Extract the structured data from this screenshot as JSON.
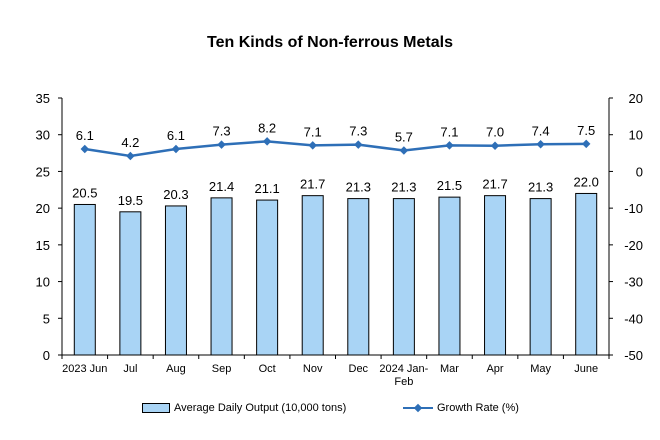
{
  "chart_data": {
    "type": "bar+line",
    "title": "Ten Kinds of Non-ferrous Metals",
    "categories": [
      "2023 Jun",
      "Jul",
      "Aug",
      "Sep",
      "Oct",
      "Nov",
      "Dec",
      "2024 Jan-Feb",
      "Mar",
      "Apr",
      "May",
      "June"
    ],
    "category_lines": [
      [
        "2023 Jun"
      ],
      [
        "Jul"
      ],
      [
        "Aug"
      ],
      [
        "Sep"
      ],
      [
        "Oct"
      ],
      [
        "Nov"
      ],
      [
        "Dec"
      ],
      [
        "2024 Jan-",
        "Feb"
      ],
      [
        "Mar"
      ],
      [
        "Apr"
      ],
      [
        "May"
      ],
      [
        "June"
      ]
    ],
    "series": [
      {
        "name": "Average Daily Output (10,000 tons)",
        "type": "bar",
        "axis": "left",
        "color": "#a9d4f5",
        "values": [
          20.5,
          19.5,
          20.3,
          21.4,
          21.1,
          21.7,
          21.3,
          21.3,
          21.5,
          21.7,
          21.3,
          22.0
        ],
        "labels": [
          "20.5",
          "19.5",
          "20.3",
          "21.4",
          "21.1",
          "21.7",
          "21.3",
          "21.3",
          "21.5",
          "21.7",
          "21.3",
          "22.0"
        ]
      },
      {
        "name": "Growth Rate (%)",
        "type": "line",
        "axis": "right",
        "color": "#2e6fb7",
        "values": [
          6.1,
          4.2,
          6.1,
          7.3,
          8.2,
          7.1,
          7.3,
          5.7,
          7.1,
          7.0,
          7.4,
          7.5
        ],
        "labels": [
          "6.1",
          "4.2",
          "6.1",
          "7.3",
          "8.2",
          "7.1",
          "7.3",
          "5.7",
          "7.1",
          "7.0",
          "7.4",
          "7.5"
        ]
      }
    ],
    "y_left": {
      "min": 0,
      "max": 35,
      "ticks": [
        "0",
        "5",
        "10",
        "15",
        "20",
        "25",
        "30",
        "35"
      ],
      "tick_values": [
        0,
        5,
        10,
        15,
        20,
        25,
        30,
        35
      ]
    },
    "y_right": {
      "min": -50,
      "max": 20,
      "ticks": [
        "-50",
        "-40",
        "-30",
        "-20",
        "-10",
        "0",
        "10",
        "20"
      ],
      "tick_values": [
        -50,
        -40,
        -30,
        -20,
        -10,
        0,
        10,
        20
      ]
    },
    "grid": false,
    "legend_position": "bottom"
  }
}
